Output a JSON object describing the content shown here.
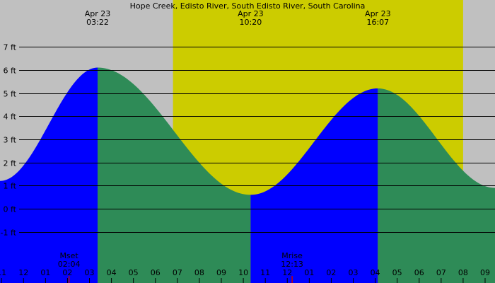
{
  "chart_data": {
    "type": "area",
    "title": "Hope Creek, Edisto River, South Edisto River, South Carolina",
    "ylim": [
      -2,
      8
    ],
    "y_ticks": [
      {
        "value": 7,
        "label": "7 ft"
      },
      {
        "value": 6,
        "label": "6 ft"
      },
      {
        "value": 5,
        "label": "5 ft"
      },
      {
        "value": 4,
        "label": "4 ft"
      },
      {
        "value": 3,
        "label": "3 ft"
      },
      {
        "value": 2,
        "label": "2 ft"
      },
      {
        "value": 1,
        "label": "1 ft"
      },
      {
        "value": 0,
        "label": "0 ft"
      },
      {
        "value": -1,
        "label": "-1 ft"
      }
    ],
    "x_range_hours": [
      -1.07,
      21.45
    ],
    "x_ticks": [
      {
        "hour": -1,
        "label": "11"
      },
      {
        "hour": 0,
        "label": "12"
      },
      {
        "hour": 1,
        "label": "01"
      },
      {
        "hour": 2,
        "label": "02"
      },
      {
        "hour": 3,
        "label": "03"
      },
      {
        "hour": 4,
        "label": "04"
      },
      {
        "hour": 5,
        "label": "05"
      },
      {
        "hour": 6,
        "label": "06"
      },
      {
        "hour": 7,
        "label": "07"
      },
      {
        "hour": 8,
        "label": "08"
      },
      {
        "hour": 9,
        "label": "09"
      },
      {
        "hour": 10,
        "label": "10"
      },
      {
        "hour": 11,
        "label": "11"
      },
      {
        "hour": 12,
        "label": "12"
      },
      {
        "hour": 13,
        "label": "01"
      },
      {
        "hour": 14,
        "label": "02"
      },
      {
        "hour": 15,
        "label": "03"
      },
      {
        "hour": 16,
        "label": "04"
      },
      {
        "hour": 17,
        "label": "05"
      },
      {
        "hour": 18,
        "label": "06"
      },
      {
        "hour": 19,
        "label": "07"
      },
      {
        "hour": 20,
        "label": "08"
      },
      {
        "hour": 21,
        "label": "09"
      }
    ],
    "daylight": {
      "start_hour": 6.8,
      "end_hour": 20.0
    },
    "tide_points": [
      {
        "hour": -1.07,
        "height": 1.2
      },
      {
        "hour": 3.37,
        "height": 6.1,
        "date_label": "Apr 23",
        "time_label": "03:22"
      },
      {
        "hour": 10.33,
        "height": 0.6,
        "date_label": "Apr 23",
        "time_label": "10:20"
      },
      {
        "hour": 16.12,
        "height": 5.2,
        "date_label": "Apr 23",
        "time_label": "16:07"
      },
      {
        "hour": 21.45,
        "height": 0.9
      }
    ],
    "moon_events": [
      {
        "hour": 2.07,
        "name": "Mset",
        "time_label": "02:04"
      },
      {
        "hour": 12.22,
        "name": "Mrise",
        "time_label": "12:13"
      }
    ],
    "colors": {
      "background": "#c0c0c0",
      "daylight": "#cccc00",
      "rising": "#0000ff",
      "falling": "#2e8b57",
      "moon_marker": "#cc0000",
      "grid": "#000000"
    }
  }
}
